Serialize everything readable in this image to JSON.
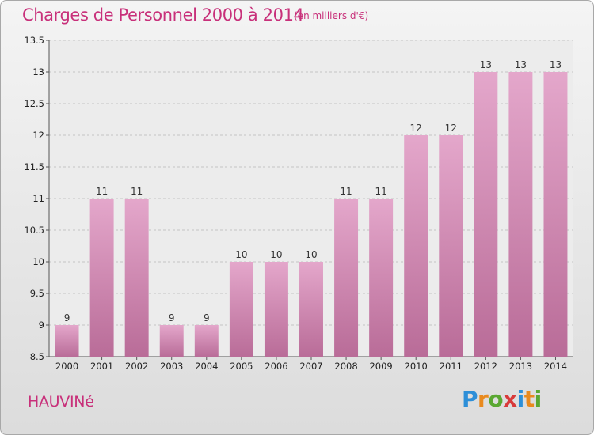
{
  "header": {
    "title": "Charges de Personnel 2000 à 2014",
    "subtitle": "(en milliers d'€)"
  },
  "commune": "HAUVINé",
  "logo": {
    "text": "Proxiti",
    "colors": [
      "#2d8fd8",
      "#e98a1e",
      "#5aa832",
      "#d83a3a",
      "#2d8fd8",
      "#e98a1e",
      "#5aa832"
    ]
  },
  "chart_data": {
    "type": "bar",
    "title": "Charges de Personnel 2000 à 2014",
    "subtitle": "(en milliers d'€)",
    "xlabel": "",
    "ylabel": "",
    "categories": [
      "2000",
      "2001",
      "2002",
      "2003",
      "2004",
      "2005",
      "2006",
      "2007",
      "2008",
      "2009",
      "2010",
      "2011",
      "2012",
      "2013",
      "2014"
    ],
    "values": [
      9,
      11,
      11,
      9,
      9,
      10,
      10,
      10,
      11,
      11,
      12,
      12,
      13,
      13,
      13
    ],
    "data_labels": [
      "9",
      "11",
      "11",
      "9",
      "9",
      "10",
      "10",
      "10",
      "11",
      "11",
      "12",
      "12",
      "13",
      "13",
      "13"
    ],
    "ylim": [
      8.5,
      13.5
    ],
    "yticks": [
      8.5,
      9,
      9.5,
      10,
      10.5,
      11,
      11.5,
      12,
      12.5,
      13,
      13.5
    ],
    "ytick_labels": [
      "8.5",
      "9",
      "9.5",
      "10",
      "10.5",
      "11",
      "11.5",
      "12",
      "12.5",
      "13",
      "13.5"
    ],
    "grid": true,
    "legend": "none",
    "bar_color": "#d98fb8",
    "bar_color_light": "#e4a7cb",
    "bar_color_dark": "#b96c98"
  }
}
